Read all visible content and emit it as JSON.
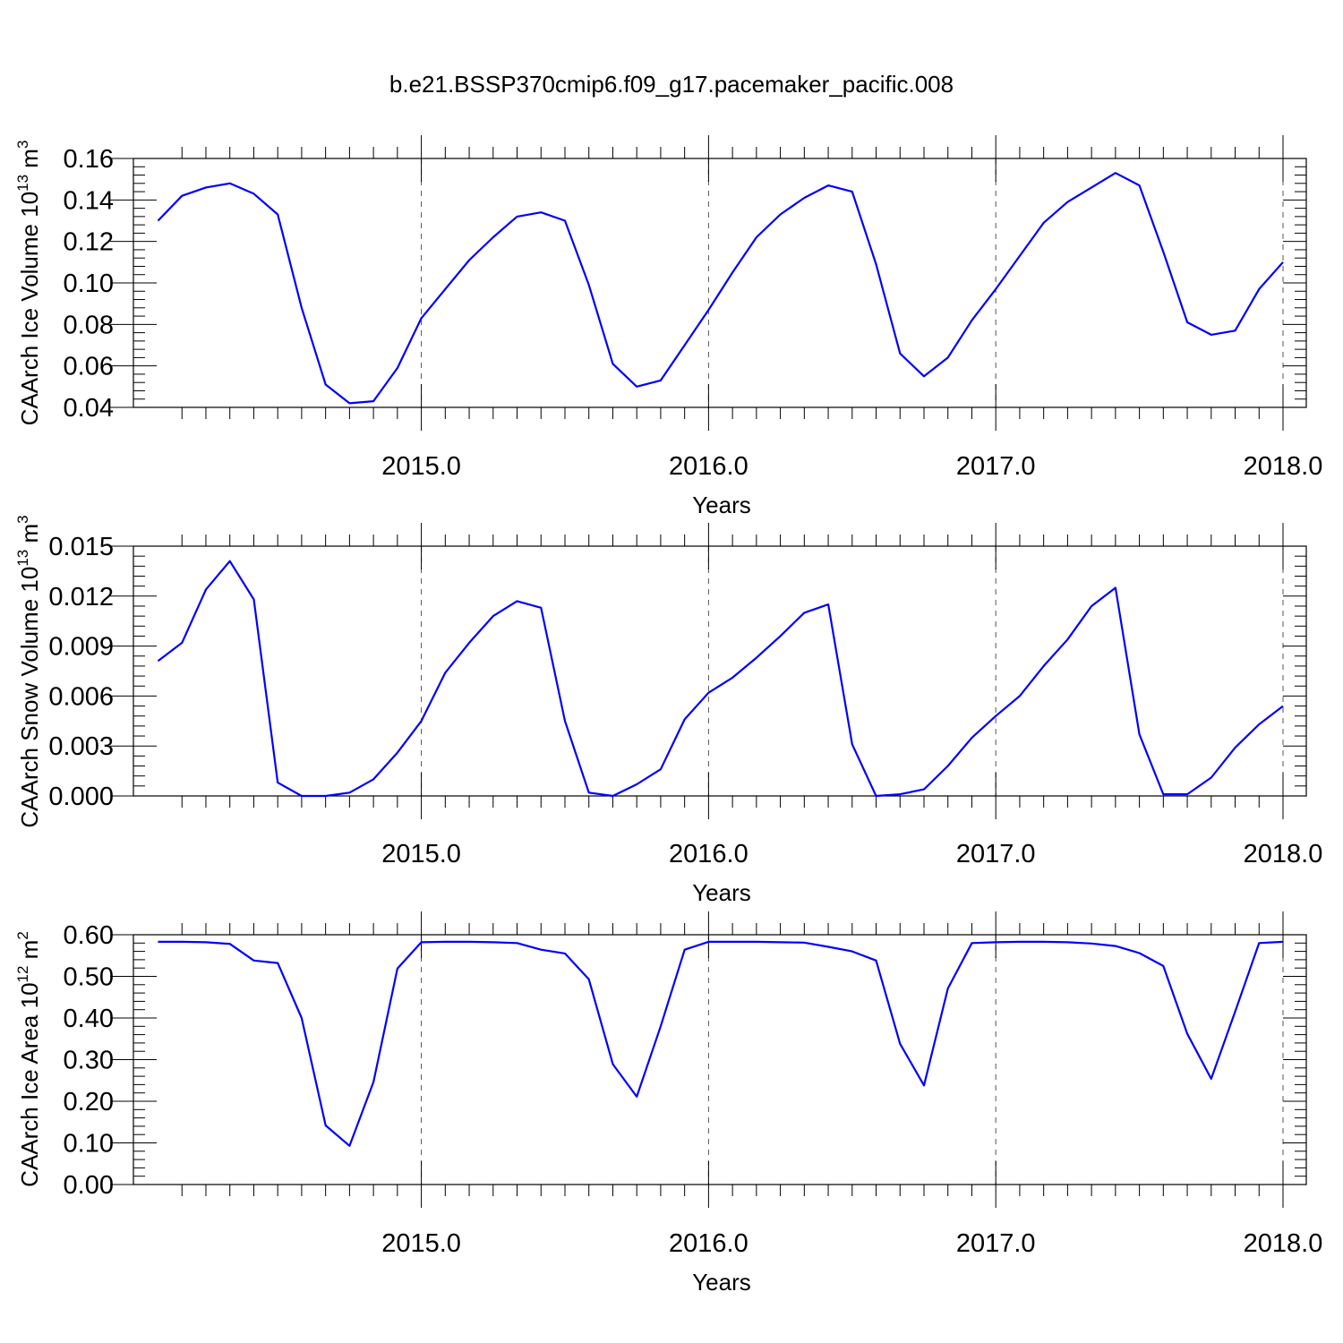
{
  "title": "b.e21.BSSP370cmip6.f09_g17.pacemaker_pacific.008",
  "line_color": "#0000ff",
  "chart_data": [
    {
      "type": "line",
      "xlabel": "Years",
      "ylabel": {
        "text": "CAArch Ice Volume 10",
        "exp": "13",
        "unit": " m",
        "unit_exp": "3"
      },
      "xlim": [
        2014.0833,
        2018.0
      ],
      "ylim": [
        0.04,
        0.16
      ],
      "yticks": [
        "0.04",
        "0.06",
        "0.08",
        "0.10",
        "0.12",
        "0.14",
        "0.16"
      ],
      "xticks": [
        "2015.0",
        "2016.0",
        "2017.0",
        "2018.0"
      ],
      "x": [
        2014.0833,
        2014.1667,
        2014.25,
        2014.3333,
        2014.4167,
        2014.5,
        2014.5833,
        2014.6667,
        2014.75,
        2014.8333,
        2014.9167,
        2015.0,
        2015.0833,
        2015.1667,
        2015.25,
        2015.3333,
        2015.4167,
        2015.5,
        2015.5833,
        2015.6667,
        2015.75,
        2015.8333,
        2015.9167,
        2016.0,
        2016.0833,
        2016.1667,
        2016.25,
        2016.3333,
        2016.4167,
        2016.5,
        2016.5833,
        2016.6667,
        2016.75,
        2016.8333,
        2016.9167,
        2017.0,
        2017.0833,
        2017.1667,
        2017.25,
        2017.3333,
        2017.4167,
        2017.5,
        2017.5833,
        2017.6667,
        2017.75,
        2017.8333,
        2017.9167,
        2018.0
      ],
      "series": [
        {
          "values": [
            0.13,
            0.142,
            0.146,
            0.148,
            0.143,
            0.133,
            0.088,
            0.051,
            0.042,
            0.043,
            0.059,
            0.083,
            0.097,
            0.111,
            0.122,
            0.132,
            0.134,
            0.13,
            0.099,
            0.061,
            0.05,
            0.053,
            0.07,
            0.087,
            0.105,
            0.122,
            0.133,
            0.141,
            0.147,
            0.144,
            0.109,
            0.066,
            0.055,
            0.064,
            0.082,
            0.097,
            0.113,
            0.129,
            0.139,
            0.146,
            0.153,
            0.147,
            0.115,
            0.081,
            0.075,
            0.077,
            0.097,
            0.11
          ]
        }
      ]
    },
    {
      "type": "line",
      "xlabel": "Years",
      "ylabel": {
        "text": "CAArch Snow Volume 10",
        "exp": "13",
        "unit": " m",
        "unit_exp": "3"
      },
      "xlim": [
        2014.0833,
        2018.0
      ],
      "ylim": [
        0.0,
        0.015
      ],
      "yticks": [
        "0.000",
        "0.003",
        "0.006",
        "0.009",
        "0.012",
        "0.015"
      ],
      "xticks": [
        "2015.0",
        "2016.0",
        "2017.0",
        "2018.0"
      ],
      "x": [
        2014.0833,
        2014.1667,
        2014.25,
        2014.3333,
        2014.4167,
        2014.5,
        2014.5833,
        2014.6667,
        2014.75,
        2014.8333,
        2014.9167,
        2015.0,
        2015.0833,
        2015.1667,
        2015.25,
        2015.3333,
        2015.4167,
        2015.5,
        2015.5833,
        2015.6667,
        2015.75,
        2015.8333,
        2015.9167,
        2016.0,
        2016.0833,
        2016.1667,
        2016.25,
        2016.3333,
        2016.4167,
        2016.5,
        2016.5833,
        2016.6667,
        2016.75,
        2016.8333,
        2016.9167,
        2017.0,
        2017.0833,
        2017.1667,
        2017.25,
        2017.3333,
        2017.4167,
        2017.5,
        2017.5833,
        2017.6667,
        2017.75,
        2017.8333,
        2017.9167,
        2018.0
      ],
      "series": [
        {
          "values": [
            0.0081,
            0.0092,
            0.0124,
            0.0141,
            0.0118,
            0.0008,
            0.0,
            0.0,
            0.0002,
            0.001,
            0.0026,
            0.0045,
            0.0074,
            0.0092,
            0.0108,
            0.0117,
            0.0113,
            0.0045,
            0.0002,
            0.0,
            0.0007,
            0.0016,
            0.0046,
            0.0062,
            0.0071,
            0.0083,
            0.0096,
            0.011,
            0.0115,
            0.0031,
            0.0,
            0.0001,
            0.0004,
            0.0018,
            0.0035,
            0.0048,
            0.006,
            0.0078,
            0.0094,
            0.0114,
            0.0125,
            0.0037,
            0.0001,
            0.0001,
            0.0011,
            0.0029,
            0.0043,
            0.0054
          ]
        }
      ]
    },
    {
      "type": "line",
      "xlabel": "Years",
      "ylabel": {
        "text": "CAArch Ice Area 10",
        "exp": "12",
        "unit": " m",
        "unit_exp": "2"
      },
      "xlim": [
        2014.0833,
        2018.0
      ],
      "ylim": [
        0.0,
        0.6
      ],
      "yticks": [
        "0.00",
        "0.10",
        "0.20",
        "0.30",
        "0.40",
        "0.50",
        "0.60"
      ],
      "xticks": [
        "2015.0",
        "2016.0",
        "2017.0",
        "2018.0"
      ],
      "x": [
        2014.0833,
        2014.1667,
        2014.25,
        2014.3333,
        2014.4167,
        2014.5,
        2014.5833,
        2014.6667,
        2014.75,
        2014.8333,
        2014.9167,
        2015.0,
        2015.0833,
        2015.1667,
        2015.25,
        2015.3333,
        2015.4167,
        2015.5,
        2015.5833,
        2015.6667,
        2015.75,
        2015.8333,
        2015.9167,
        2016.0,
        2016.0833,
        2016.1667,
        2016.25,
        2016.3333,
        2016.4167,
        2016.5,
        2016.5833,
        2016.6667,
        2016.75,
        2016.8333,
        2016.9167,
        2017.0,
        2017.0833,
        2017.1667,
        2017.25,
        2017.3333,
        2017.4167,
        2017.5,
        2017.5833,
        2017.6667,
        2017.75,
        2017.8333,
        2017.9167,
        2018.0
      ],
      "series": [
        {
          "values": [
            0.583,
            0.583,
            0.582,
            0.578,
            0.538,
            0.532,
            0.4,
            0.142,
            0.093,
            0.246,
            0.519,
            0.582,
            0.583,
            0.583,
            0.582,
            0.58,
            0.564,
            0.555,
            0.493,
            0.289,
            0.211,
            0.38,
            0.564,
            0.583,
            0.583,
            0.583,
            0.582,
            0.581,
            0.571,
            0.56,
            0.538,
            0.338,
            0.238,
            0.471,
            0.58,
            0.582,
            0.583,
            0.583,
            0.582,
            0.579,
            0.573,
            0.556,
            0.525,
            0.362,
            0.254,
            0.415,
            0.58,
            0.583
          ]
        }
      ]
    }
  ]
}
